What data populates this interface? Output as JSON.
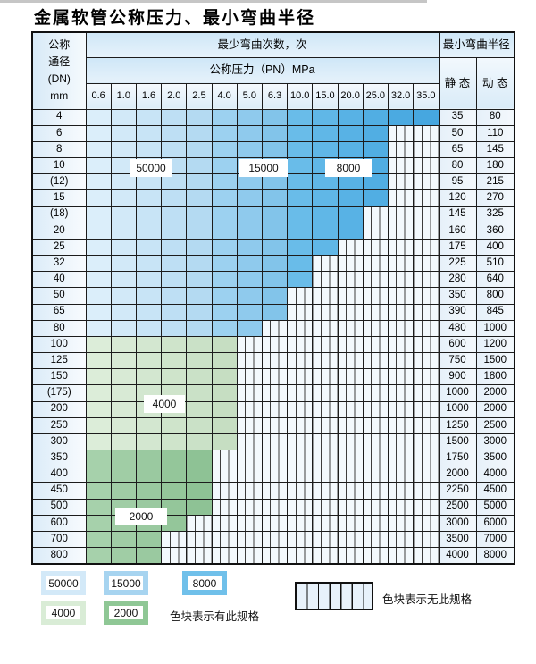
{
  "title": "金属软管公称压力、最小弯曲半径",
  "table": {
    "header": {
      "dn_lines": [
        "公称",
        "通径",
        "(DN)",
        "mm"
      ],
      "cycles_header": "最少弯曲次数，次",
      "pressure_header": "公称压力（PN）MPa",
      "pressures": [
        "0.6",
        "1.0",
        "1.6",
        "2.0",
        "2.5",
        "4.0",
        "5.0",
        "6.3",
        "10.0",
        "15.0",
        "20.0",
        "25.0",
        "32.0",
        "35.0"
      ],
      "radius_header": "最小弯曲半径",
      "static_header": "静 态",
      "dynamic_header": "动 态"
    },
    "blue_bands": [
      {
        "cycles": "50000",
        "last_col": 4
      },
      {
        "cycles": "15000",
        "last_col": 7
      },
      {
        "cycles": "8000",
        "last_col": 13
      }
    ],
    "rows": [
      {
        "dn": "4",
        "colored_cols": 14,
        "zone": "blue",
        "static": "35",
        "dynamic": "80"
      },
      {
        "dn": "6",
        "colored_cols": 12,
        "zone": "blue",
        "static": "50",
        "dynamic": "110"
      },
      {
        "dn": "8",
        "colored_cols": 12,
        "zone": "blue",
        "static": "65",
        "dynamic": "145"
      },
      {
        "dn": "10",
        "colored_cols": 12,
        "zone": "blue",
        "static": "80",
        "dynamic": "180"
      },
      {
        "dn": "(12)",
        "colored_cols": 12,
        "zone": "blue",
        "static": "95",
        "dynamic": "215"
      },
      {
        "dn": "15",
        "colored_cols": 12,
        "zone": "blue",
        "static": "120",
        "dynamic": "270"
      },
      {
        "dn": "(18)",
        "colored_cols": 11,
        "zone": "blue",
        "static": "145",
        "dynamic": "325"
      },
      {
        "dn": "20",
        "colored_cols": 11,
        "zone": "blue",
        "static": "160",
        "dynamic": "360"
      },
      {
        "dn": "25",
        "colored_cols": 10,
        "zone": "blue",
        "static": "175",
        "dynamic": "400"
      },
      {
        "dn": "32",
        "colored_cols": 9,
        "zone": "blue",
        "static": "225",
        "dynamic": "510"
      },
      {
        "dn": "40",
        "colored_cols": 9,
        "zone": "blue",
        "static": "280",
        "dynamic": "640"
      },
      {
        "dn": "50",
        "colored_cols": 8,
        "zone": "blue",
        "static": "350",
        "dynamic": "800"
      },
      {
        "dn": "65",
        "colored_cols": 8,
        "zone": "blue",
        "static": "390",
        "dynamic": "845"
      },
      {
        "dn": "80",
        "colored_cols": 7,
        "zone": "blue",
        "static": "480",
        "dynamic": "1000"
      },
      {
        "dn": "100",
        "colored_cols": 6,
        "zone": "4000",
        "static": "600",
        "dynamic": "1200"
      },
      {
        "dn": "125",
        "colored_cols": 6,
        "zone": "4000",
        "static": "750",
        "dynamic": "1500"
      },
      {
        "dn": "150",
        "colored_cols": 6,
        "zone": "4000",
        "static": "900",
        "dynamic": "1800"
      },
      {
        "dn": "(175)",
        "colored_cols": 6,
        "zone": "4000",
        "static": "1000",
        "dynamic": "2000"
      },
      {
        "dn": "200",
        "colored_cols": 6,
        "zone": "4000",
        "static": "1000",
        "dynamic": "2000"
      },
      {
        "dn": "250",
        "colored_cols": 6,
        "zone": "4000",
        "static": "1250",
        "dynamic": "2500"
      },
      {
        "dn": "300",
        "colored_cols": 6,
        "zone": "4000",
        "static": "1500",
        "dynamic": "3000"
      },
      {
        "dn": "350",
        "colored_cols": 5,
        "zone": "2000",
        "static": "1750",
        "dynamic": "3500"
      },
      {
        "dn": "400",
        "colored_cols": 5,
        "zone": "2000",
        "static": "2000",
        "dynamic": "4000"
      },
      {
        "dn": "450",
        "colored_cols": 5,
        "zone": "2000",
        "static": "2250",
        "dynamic": "4500"
      },
      {
        "dn": "500",
        "colored_cols": 5,
        "zone": "2000",
        "static": "2500",
        "dynamic": "5000"
      },
      {
        "dn": "600",
        "colored_cols": 4,
        "zone": "2000",
        "static": "3000",
        "dynamic": "6000"
      },
      {
        "dn": "700",
        "colored_cols": 3,
        "zone": "2000",
        "static": "3500",
        "dynamic": "7000"
      },
      {
        "dn": "800",
        "colored_cols": 3,
        "zone": "2000",
        "static": "4000",
        "dynamic": "8000"
      }
    ],
    "zone_labels": [
      {
        "text": "50000"
      },
      {
        "text": "15000"
      },
      {
        "text": "8000"
      },
      {
        "text": "4000"
      },
      {
        "text": "2000"
      }
    ]
  },
  "legend": {
    "swatches": [
      {
        "label": "50000",
        "color": "#d3e9f8"
      },
      {
        "label": "15000",
        "color": "#a7d4f0"
      },
      {
        "label": "8000",
        "color": "#70c0ea"
      },
      {
        "label": "4000",
        "color": "#d9ecd6"
      },
      {
        "label": "2000",
        "color": "#8fc795"
      }
    ],
    "has_spec_text": "色块表示有此规格",
    "no_spec_text": "色块表示无此规格"
  },
  "colors": {
    "cycles_50000": "#c6e3f5",
    "cycles_15000": "#8fcaed",
    "cycles_8000": "#5bb2e5",
    "cycles_4000": "#d3e7d0",
    "cycles_2000": "#9ac9a0",
    "no_spec_fill": "#f3f9fd",
    "grid_line": "#1c1c1c"
  }
}
